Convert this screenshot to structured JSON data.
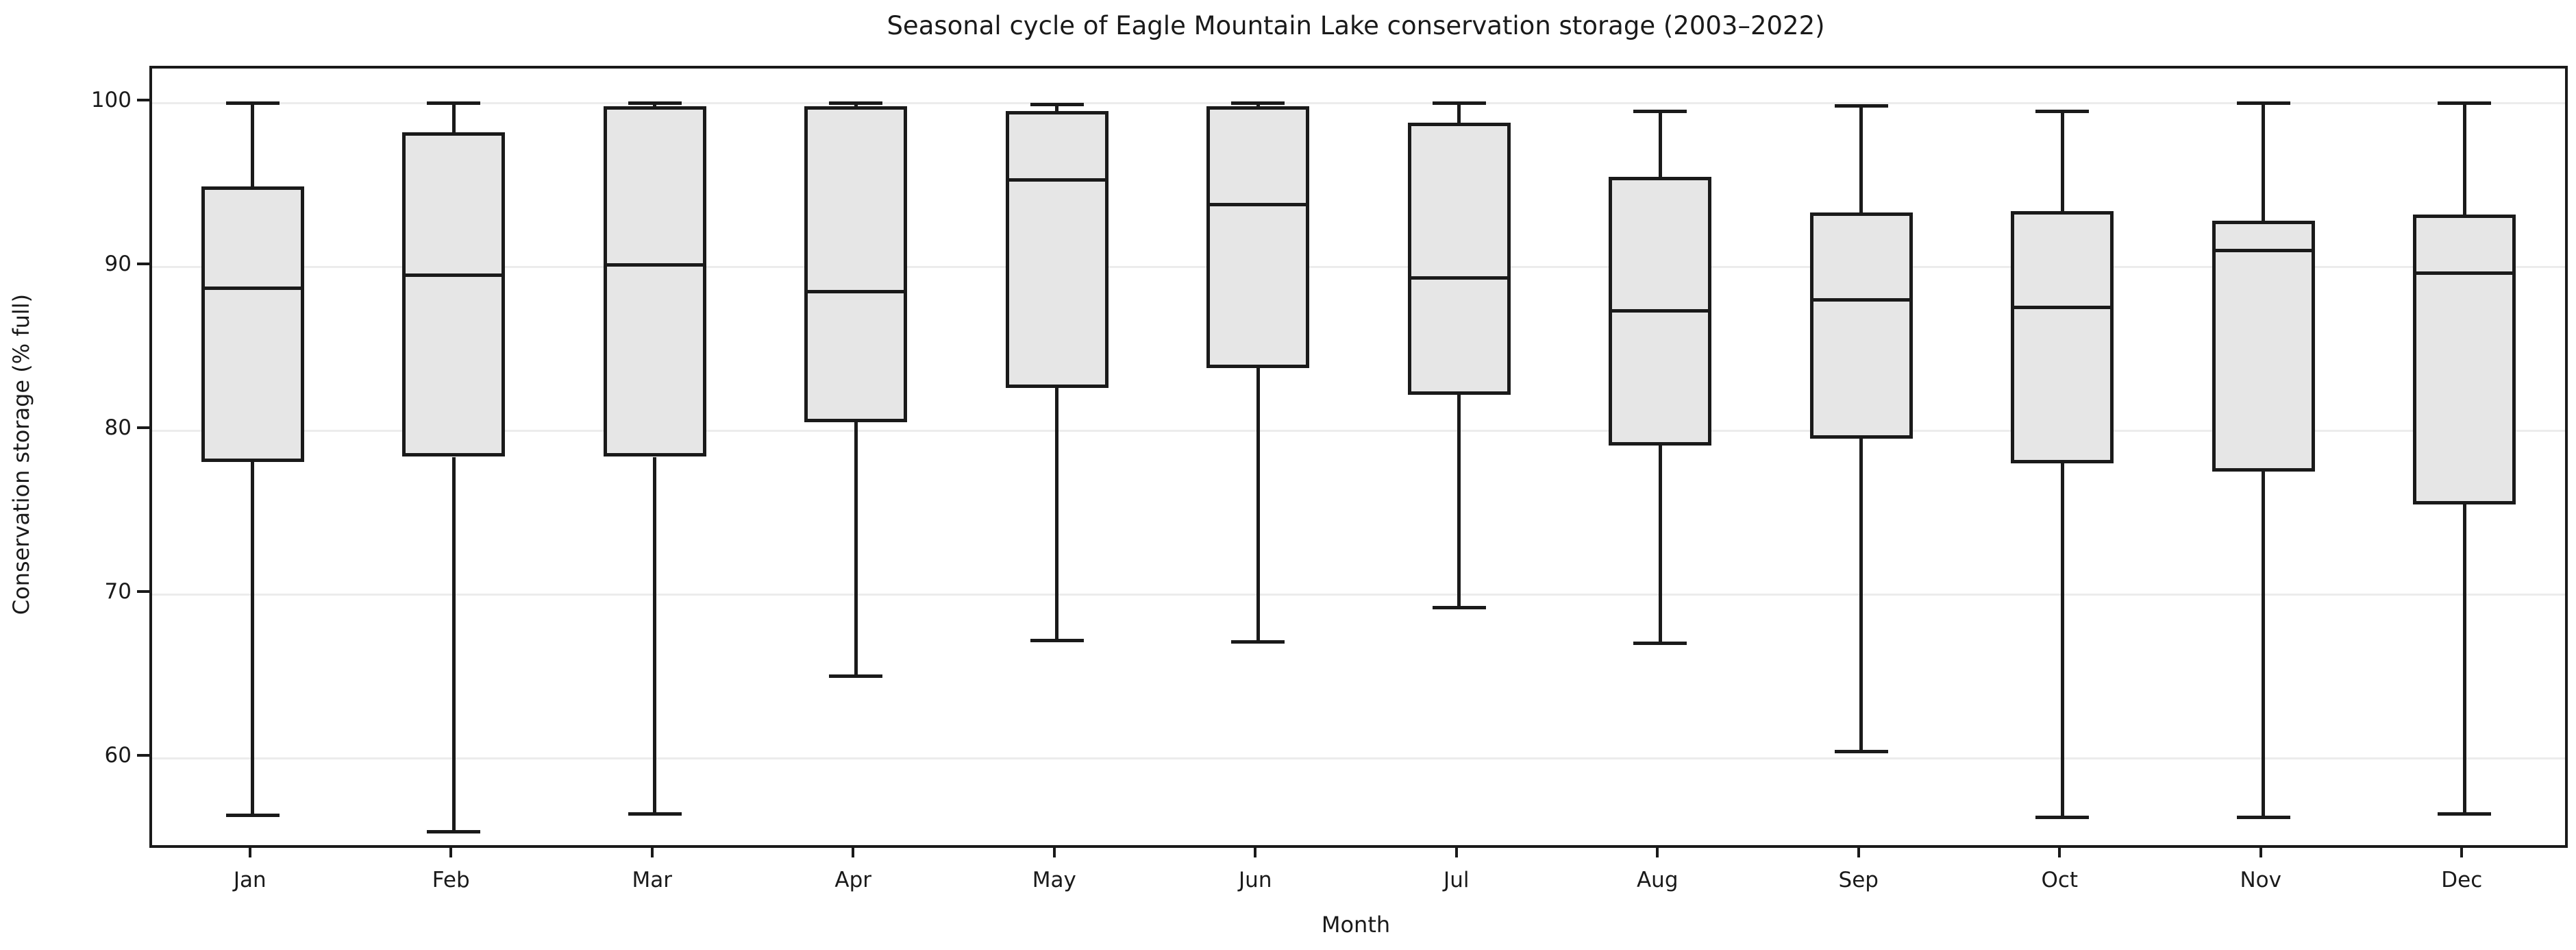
{
  "chart_data": {
    "type": "boxplot",
    "title": "Seasonal cycle of Eagle Mountain Lake conservation storage (2003–2022)",
    "xlabel": "Month",
    "ylabel": "Conservation storage (% full)",
    "ylim": [
      54.7,
      102.1
    ],
    "yticks": [
      60,
      70,
      80,
      90,
      100
    ],
    "grid": "horizontal-light",
    "legend": "none",
    "categories": [
      "Jan",
      "Feb",
      "Mar",
      "Apr",
      "May",
      "Jun",
      "Jul",
      "Aug",
      "Sep",
      "Oct",
      "Nov",
      "Dec"
    ],
    "series": [
      {
        "month": "Jan",
        "min": 56.5,
        "q1": 78.1,
        "median": 88.7,
        "q3": 94.9,
        "max": 100.0
      },
      {
        "month": "Feb",
        "min": 55.5,
        "q1": 78.4,
        "median": 89.5,
        "q3": 98.2,
        "max": 100.0
      },
      {
        "month": "Mar",
        "min": 56.6,
        "q1": 78.4,
        "median": 90.1,
        "q3": 99.8,
        "max": 100.0
      },
      {
        "month": "Apr",
        "min": 65.0,
        "q1": 80.5,
        "median": 88.5,
        "q3": 99.8,
        "max": 100.0
      },
      {
        "month": "May",
        "min": 67.2,
        "q1": 82.6,
        "median": 95.3,
        "q3": 99.5,
        "max": 99.9
      },
      {
        "month": "Jun",
        "min": 67.1,
        "q1": 83.8,
        "median": 93.8,
        "q3": 99.8,
        "max": 100.0
      },
      {
        "month": "Jul",
        "min": 69.2,
        "q1": 82.2,
        "median": 89.3,
        "q3": 98.8,
        "max": 100.0
      },
      {
        "month": "Aug",
        "min": 67.0,
        "q1": 79.1,
        "median": 87.3,
        "q3": 95.5,
        "max": 99.5
      },
      {
        "month": "Sep",
        "min": 60.4,
        "q1": 79.5,
        "median": 88.0,
        "q3": 93.3,
        "max": 99.8
      },
      {
        "month": "Oct",
        "min": 56.4,
        "q1": 78.0,
        "median": 87.5,
        "q3": 93.4,
        "max": 99.5
      },
      {
        "month": "Nov",
        "min": 56.4,
        "q1": 77.5,
        "median": 91.0,
        "q3": 92.8,
        "max": 100.0
      },
      {
        "month": "Dec",
        "min": 56.6,
        "q1": 75.5,
        "median": 89.6,
        "q3": 93.2,
        "max": 100.0
      }
    ]
  },
  "colors": {
    "box_fill": "#e6e6e6",
    "line": "#1a1a1a",
    "gridline": "#ececec",
    "background": "#ffffff"
  }
}
